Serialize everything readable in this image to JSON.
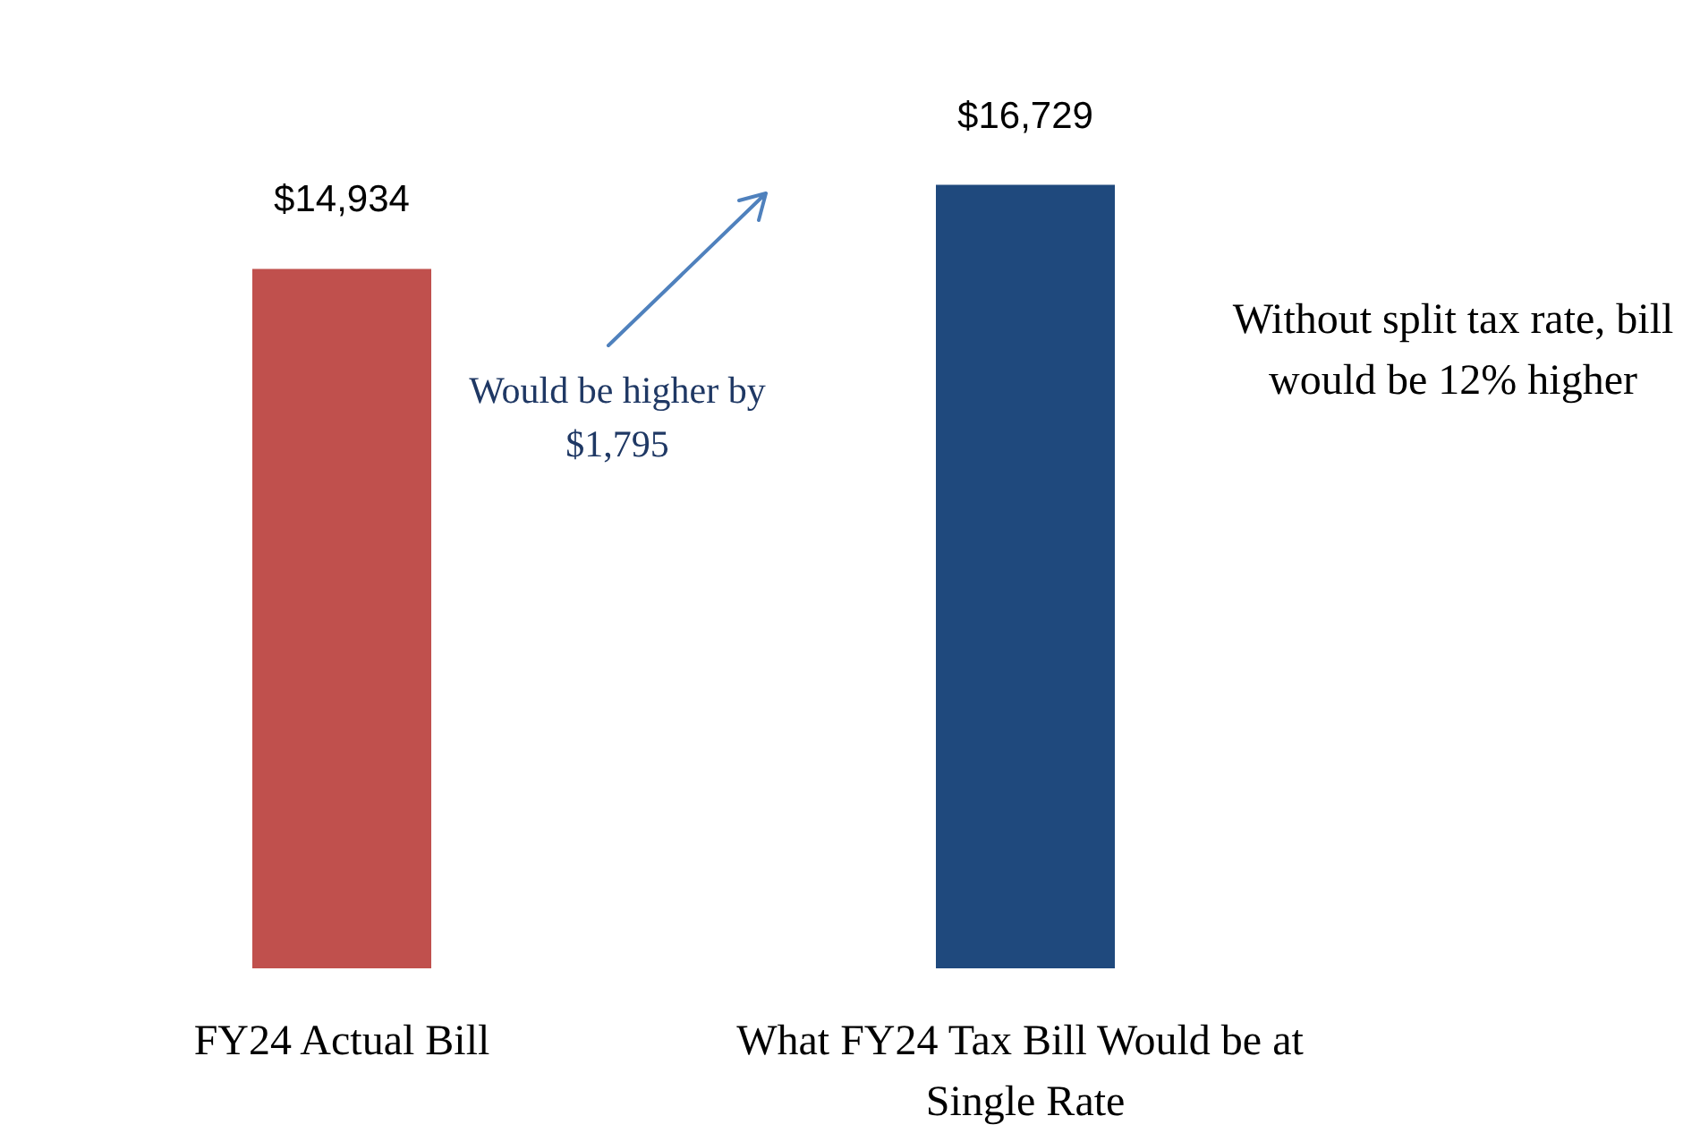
{
  "chart_data": {
    "type": "bar",
    "categories": [
      "FY24 Actual Bill",
      "What FY24 Tax Bill Would be at Single Rate"
    ],
    "values": [
      14934,
      16729
    ],
    "colors": [
      "#c0504d",
      "#1f497d"
    ],
    "value_labels": [
      "$14,934",
      "$16,729"
    ],
    "annotations": [
      "Would be higher by $1,795",
      "Without split tax rate, bill would be 12% higher"
    ]
  }
}
